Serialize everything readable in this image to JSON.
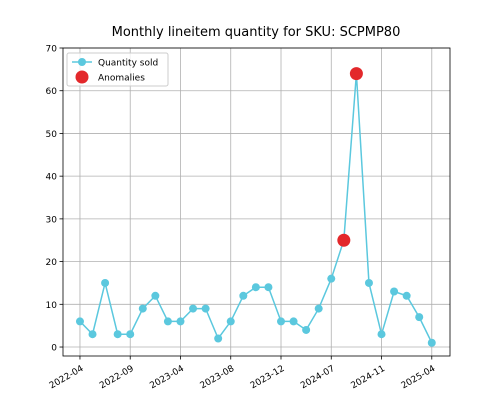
{
  "chart_data": {
    "type": "line",
    "title": "Monthly lineitem quantity for SKU: SCPMP80",
    "categories": [
      "2022-04",
      null,
      null,
      null,
      "2022-09",
      null,
      null,
      null,
      "2023-04",
      null,
      null,
      null,
      "2023-08",
      null,
      null,
      null,
      "2023-12",
      null,
      null,
      null,
      "2024-07",
      null,
      null,
      null,
      "2024-11",
      null,
      null,
      null,
      "2025-04"
    ],
    "series": [
      {
        "name": "Quantity sold",
        "color": "#5bc8de",
        "values": [
          6,
          3,
          15,
          3,
          3,
          9,
          12,
          6,
          6,
          9,
          9,
          2,
          6,
          12,
          14,
          14,
          6,
          6,
          4,
          9,
          16,
          25,
          64,
          15,
          3,
          13,
          12,
          7,
          1
        ]
      },
      {
        "name": "Anomalies",
        "color": "#e3282b",
        "values": [
          null,
          null,
          null,
          null,
          null,
          null,
          null,
          null,
          null,
          null,
          null,
          null,
          null,
          null,
          null,
          null,
          null,
          null,
          null,
          null,
          null,
          25,
          64,
          null,
          null,
          null,
          null,
          null,
          null
        ]
      }
    ],
    "ylim": [
      -2.1,
      70
    ],
    "yticks": [
      0,
      10,
      20,
      30,
      40,
      50,
      60,
      70
    ],
    "xlim": [
      -1.35,
      29.45
    ],
    "grid": true,
    "legend": "upper left"
  }
}
